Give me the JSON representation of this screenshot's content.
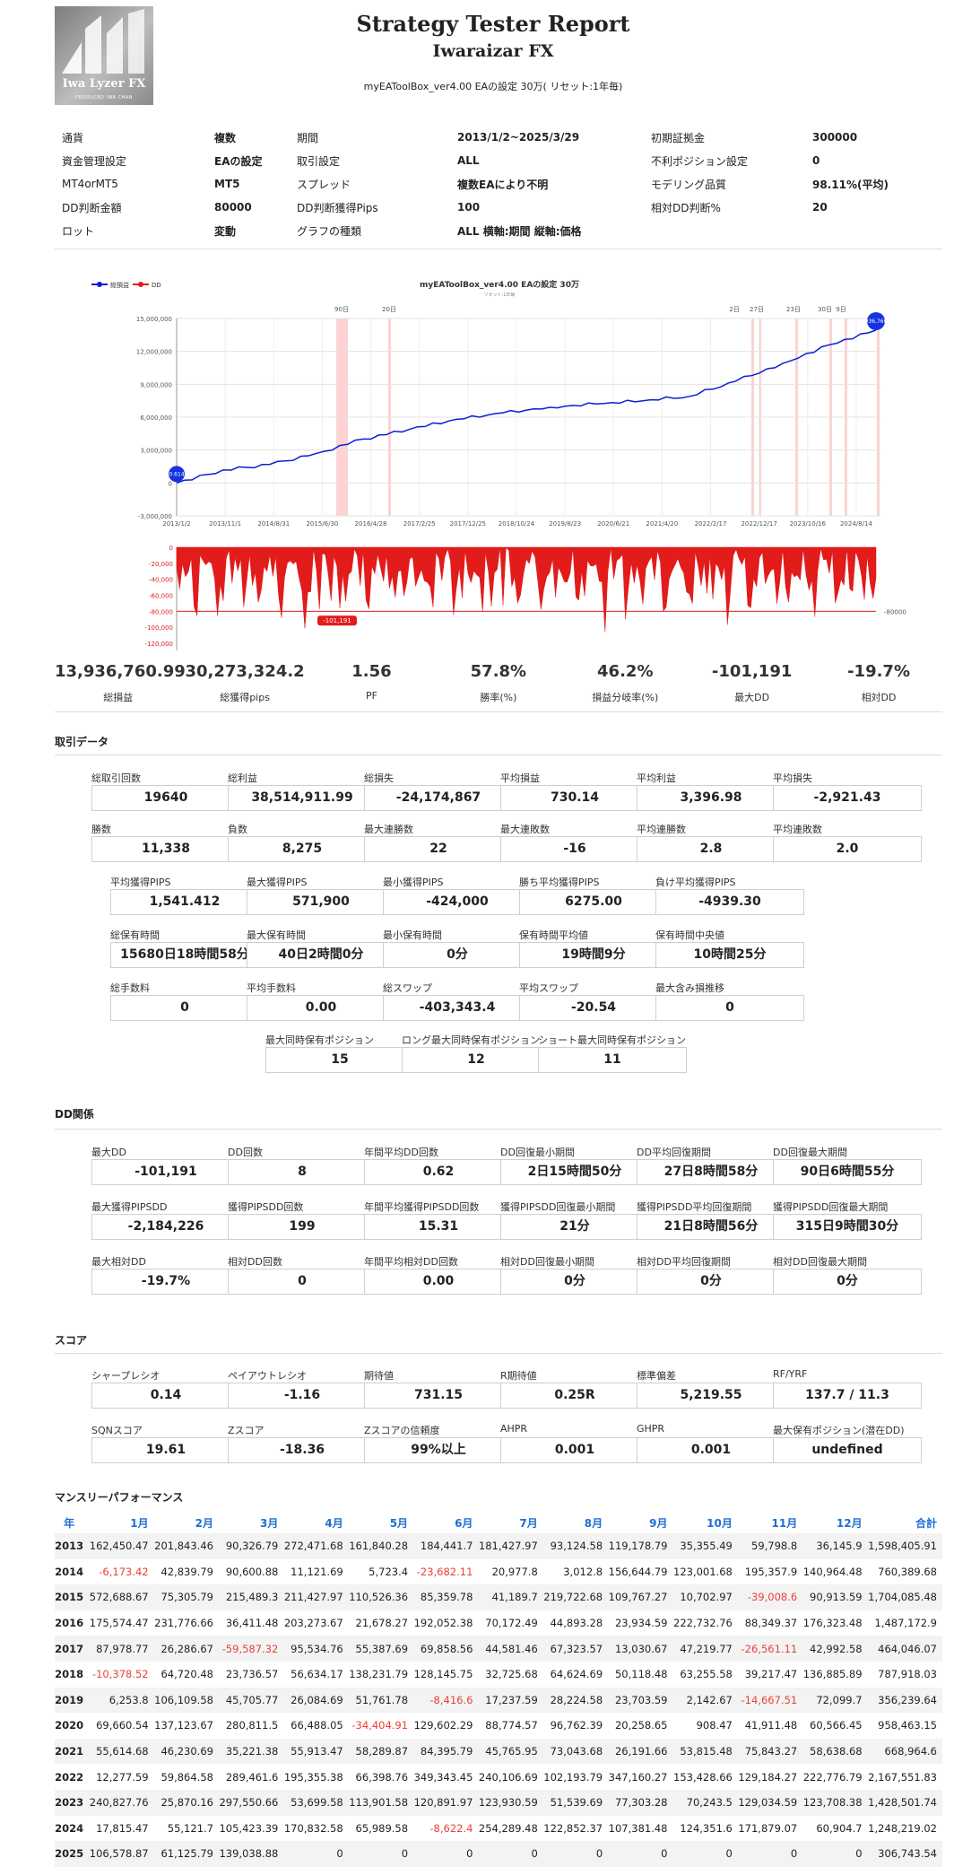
{
  "header": {
    "logo_text": "Iwa Lyzer FX",
    "logo_sub": "PRODUCED  IWA CHAN",
    "title": "Strategy Tester Report",
    "title2": "Iwaraizar FX",
    "subtitle": "myEAToolBox_ver4.00 EAの設定 30万( リセット:1年毎)"
  },
  "info": [
    [
      "通貨",
      "複数",
      "期間",
      "2013/1/2~2025/3/29",
      "初期証拠金",
      "300000"
    ],
    [
      "資金管理設定",
      "EAの設定",
      "取引設定",
      "ALL",
      "不利ポジション設定",
      "0"
    ],
    [
      "MT4orMT5",
      "MT5",
      "スプレッド",
      "複数EAにより不明",
      "モデリング品質",
      "98.11%(平均)"
    ],
    [
      "DD判断金額",
      "80000",
      "DD判断獲得Pips",
      "100",
      "相対DD判断%",
      "20"
    ],
    [
      "ロット",
      "変動",
      "グラフの種類",
      "ALL 横軸:期間 縦軸:価格",
      "",
      ""
    ]
  ],
  "chart_data": {
    "type": "line",
    "title": "myEAToolBox_ver4.00 EAの設定 30万",
    "subtitle": "リセット:1年毎",
    "legend": [
      "総損益",
      "DD"
    ],
    "series_colors": {
      "balance": "#0a1fd6",
      "dd": "#e21b1b"
    },
    "y_ticks": [
      "15,000,000",
      "12,000,000",
      "9,000,000",
      "6,000,000",
      "3,000,000",
      "0",
      "-3,000,000"
    ],
    "x_ticks": [
      "2013/1/2",
      "2013/11/1",
      "2014/8/31",
      "2015/6/30",
      "2016/4/28",
      "2017/2/25",
      "2017/12/25",
      "2018/10/24",
      "2019/8/23",
      "2020/6/21",
      "2021/4/20",
      "2022/2/17",
      "2022/12/17",
      "2023/10/16",
      "2024/8/14"
    ],
    "ylim": [
      -3000000,
      15000000
    ],
    "balance_points": [
      [
        0,
        0
      ],
      [
        1,
        1200000
      ],
      [
        2,
        1700000
      ],
      [
        3,
        2700000
      ],
      [
        4,
        4000000
      ],
      [
        5,
        4900000
      ],
      [
        6,
        5800000
      ],
      [
        7,
        6400000
      ],
      [
        8,
        6900000
      ],
      [
        9,
        7200000
      ],
      [
        10,
        7500000
      ],
      [
        11,
        7900000
      ],
      [
        12,
        9300000
      ],
      [
        13,
        10900000
      ],
      [
        14,
        12600000
      ],
      [
        15,
        13936760
      ]
    ],
    "dd_ticks": [
      "0",
      "-20,000",
      "-40,000",
      "-60,000",
      "-80,000",
      "-100,000",
      "-120,000"
    ],
    "dd_threshold_label": "-80000",
    "dd_labels": [
      "90日",
      "20日",
      "2日",
      "27日",
      "23日",
      "30日",
      "9日"
    ],
    "start_badge": "0.614",
    "end_badge": "13,936,760.99",
    "dd_badge": "-101,191"
  },
  "kpis": [
    {
      "value": "13,936,760.99",
      "label": "総損益"
    },
    {
      "value": "30,273,324.2",
      "label": "総獲得pips"
    },
    {
      "value": "1.56",
      "label": "PF"
    },
    {
      "value": "57.8%",
      "label": "勝率(%)"
    },
    {
      "value": "46.2%",
      "label": "損益分岐率(%)"
    },
    {
      "value": "-101,191",
      "label": "最大DD"
    },
    {
      "value": "-19.7%",
      "label": "相対DD"
    }
  ],
  "trade": {
    "title": "取引データ",
    "row1": [
      [
        "総取引回数",
        "19640"
      ],
      [
        "総利益",
        "38,514,911.99"
      ],
      [
        "総損失",
        "-24,174,867"
      ],
      [
        "平均損益",
        "730.14"
      ],
      [
        "平均利益",
        "3,396.98"
      ],
      [
        "平均損失",
        "-2,921.43"
      ]
    ],
    "row2": [
      [
        "勝数",
        "11,338"
      ],
      [
        "負数",
        "8,275"
      ],
      [
        "最大連勝数",
        "22"
      ],
      [
        "最大連敗数",
        "-16"
      ],
      [
        "平均連勝数",
        "2.8"
      ],
      [
        "平均連敗数",
        "2.0"
      ]
    ],
    "row3": [
      [
        "平均獲得PIPS",
        "1,541.412"
      ],
      [
        "最大獲得PIPS",
        "571,900"
      ],
      [
        "最小獲得PIPS",
        "-424,000"
      ],
      [
        "勝ち平均獲得PIPS",
        "6275.00"
      ],
      [
        "負け平均獲得PIPS",
        "-4939.30"
      ]
    ],
    "row4": [
      [
        "総保有時間",
        "15680日18時間58分"
      ],
      [
        "最大保有時間",
        "40日2時間0分"
      ],
      [
        "最小保有時間",
        "0分"
      ],
      [
        "保有時間平均値",
        "19時間9分"
      ],
      [
        "保有時間中央値",
        "10時間25分"
      ]
    ],
    "row5": [
      [
        "総手数料",
        "0"
      ],
      [
        "平均手数料",
        "0.00"
      ],
      [
        "総スワップ",
        "-403,343.4"
      ],
      [
        "平均スワップ",
        "-20.54"
      ],
      [
        "最大含み損推移",
        "0"
      ]
    ],
    "row6": [
      [
        "最大同時保有ポジション",
        "15"
      ],
      [
        "ロング最大同時保有ポジション",
        "12"
      ],
      [
        "ショート最大同時保有ポジション",
        "11"
      ]
    ]
  },
  "dd": {
    "title": "DD関係",
    "row1": [
      [
        "最大DD",
        "-101,191"
      ],
      [
        "DD回数",
        "8"
      ],
      [
        "年間平均DD回数",
        "0.62"
      ],
      [
        "DD回復最小期間",
        "2日15時間50分"
      ],
      [
        "DD平均回復期間",
        "27日8時間58分"
      ],
      [
        "DD回復最大期間",
        "90日6時間55分"
      ]
    ],
    "row2": [
      [
        "最大獲得PIPSDD",
        "-2,184,226"
      ],
      [
        "獲得PIPSDD回数",
        "199"
      ],
      [
        "年間平均獲得PIPSDD回数",
        "15.31"
      ],
      [
        "獲得PIPSDD回復最小期間",
        "21分"
      ],
      [
        "獲得PIPSDD平均回復期間",
        "21日8時間56分"
      ],
      [
        "獲得PIPSDD回復最大期間",
        "315日9時間30分"
      ]
    ],
    "row3": [
      [
        "最大相対DD",
        "-19.7%"
      ],
      [
        "相対DD回数",
        "0"
      ],
      [
        "年間平均相対DD回数",
        "0.00"
      ],
      [
        "相対DD回復最小期間",
        "0分"
      ],
      [
        "相対DD平均回復期間",
        "0分"
      ],
      [
        "相対DD回復最大期間",
        "0分"
      ]
    ]
  },
  "score": {
    "title": "スコア",
    "row1": [
      [
        "シャープレシオ",
        "0.14"
      ],
      [
        "ペイアウトレシオ",
        "-1.16"
      ],
      [
        "期待値",
        "731.15"
      ],
      [
        "R期待値",
        "0.25R"
      ],
      [
        "標準偏差",
        "5,219.55"
      ],
      [
        "RF/YRF",
        "137.7 / 11.3"
      ]
    ],
    "row2": [
      [
        "SQNスコア",
        "19.61"
      ],
      [
        "Zスコア",
        "-18.36"
      ],
      [
        "Zスコアの信頼度",
        "99%以上"
      ],
      [
        "AHPR",
        "0.001"
      ],
      [
        "GHPR",
        "0.001"
      ],
      [
        "最大保有ポジション(潜在DD)",
        "undefined"
      ]
    ]
  },
  "monthly": {
    "title": "マンスリーパフォーマンス",
    "headers": [
      "年",
      "1月",
      "2月",
      "3月",
      "4月",
      "5月",
      "6月",
      "7月",
      "8月",
      "9月",
      "10月",
      "11月",
      "12月",
      "合計"
    ],
    "rows": [
      [
        "2013",
        "162,450.47",
        "201,843.46",
        "90,326.79",
        "272,471.68",
        "161,840.28",
        "184,441.7",
        "181,427.97",
        "93,124.58",
        "119,178.79",
        "35,355.49",
        "59,798.8",
        "36,145.9",
        "1,598,405.91"
      ],
      [
        "2014",
        "-6,173.42",
        "42,839.79",
        "90,600.88",
        "11,121.69",
        "5,723.4",
        "-23,682.11",
        "20,977.8",
        "3,012.8",
        "156,644.79",
        "123,001.68",
        "195,357.9",
        "140,964.48",
        "760,389.68"
      ],
      [
        "2015",
        "572,688.67",
        "75,305.79",
        "215,489.3",
        "211,427.97",
        "110,526.36",
        "85,359.78",
        "41,189.7",
        "219,722.68",
        "109,767.27",
        "10,702.97",
        "-39,008.6",
        "90,913.59",
        "1,704,085.48"
      ],
      [
        "2016",
        "175,574.47",
        "231,776.66",
        "36,411.48",
        "203,273.67",
        "21,678.27",
        "192,052.38",
        "70,172.49",
        "44,893.28",
        "23,934.59",
        "222,732.76",
        "88,349.37",
        "176,323.48",
        "1,487,172.9"
      ],
      [
        "2017",
        "87,978.77",
        "26,286.67",
        "-59,587.32",
        "95,534.76",
        "55,387.69",
        "69,858.56",
        "44,581.46",
        "67,323.57",
        "13,030.67",
        "47,219.77",
        "-26,561.11",
        "42,992.58",
        "464,046.07"
      ],
      [
        "2018",
        "-10,378.52",
        "64,720.48",
        "23,736.57",
        "56,634.17",
        "138,231.79",
        "128,145.75",
        "32,725.68",
        "64,624.69",
        "50,118.48",
        "63,255.58",
        "39,217.47",
        "136,885.89",
        "787,918.03"
      ],
      [
        "2019",
        "6,253.8",
        "106,109.58",
        "45,705.77",
        "26,084.69",
        "51,761.78",
        "-8,416.6",
        "17,237.59",
        "28,224.58",
        "23,703.59",
        "2,142.67",
        "-14,667.51",
        "72,099.7",
        "356,239.64"
      ],
      [
        "2020",
        "69,660.54",
        "137,123.67",
        "280,811.5",
        "66,488.05",
        "-34,404.91",
        "129,602.29",
        "88,774.57",
        "96,762.39",
        "20,258.65",
        "908.47",
        "41,911.48",
        "60,566.45",
        "958,463.15"
      ],
      [
        "2021",
        "55,614.68",
        "46,230.69",
        "35,221.38",
        "55,913.47",
        "58,289.87",
        "84,395.79",
        "45,765.95",
        "73,043.68",
        "26,191.66",
        "53,815.48",
        "75,843.27",
        "58,638.68",
        "668,964.6"
      ],
      [
        "2022",
        "12,277.59",
        "59,864.58",
        "289,461.6",
        "195,355.38",
        "66,398.76",
        "349,343.45",
        "240,106.69",
        "102,193.79",
        "347,160.27",
        "153,428.66",
        "129,184.27",
        "222,776.79",
        "2,167,551.83"
      ],
      [
        "2023",
        "240,827.76",
        "25,870.16",
        "297,550.66",
        "53,699.58",
        "113,901.58",
        "120,891.97",
        "123,930.59",
        "51,539.69",
        "77,303.28",
        "70,243.5",
        "129,034.59",
        "123,708.38",
        "1,428,501.74"
      ],
      [
        "2024",
        "17,815.47",
        "55,121.7",
        "105,423.39",
        "170,832.58",
        "65,989.58",
        "-8,622.4",
        "254,289.48",
        "122,852.37",
        "107,381.48",
        "124,351.6",
        "171,879.07",
        "60,904.7",
        "1,248,219.02"
      ],
      [
        "2025",
        "106,578.87",
        "61,125.79",
        "139,038.88",
        "0",
        "0",
        "0",
        "0",
        "0",
        "0",
        "0",
        "0",
        "0",
        "306,743.54"
      ]
    ]
  }
}
